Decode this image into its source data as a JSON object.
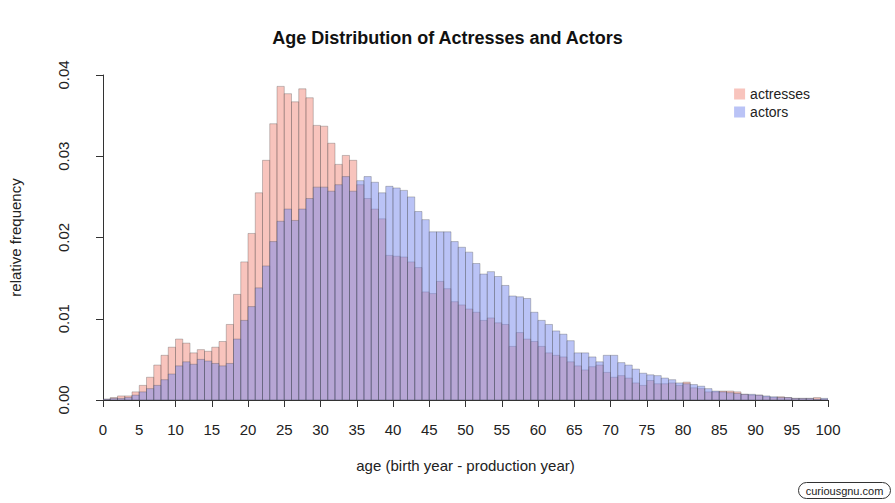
{
  "chart_data": {
    "type": "histogram",
    "title": "Age Distribution of Actresses and Actors",
    "x_label": "age (birth year - production year)",
    "y_label": "relative frequency",
    "bins": [
      0,
      1,
      2,
      3,
      4,
      5,
      6,
      7,
      8,
      9,
      10,
      11,
      12,
      13,
      14,
      15,
      16,
      17,
      18,
      19,
      20,
      21,
      22,
      23,
      24,
      25,
      26,
      27,
      28,
      29,
      30,
      31,
      32,
      33,
      34,
      35,
      36,
      37,
      38,
      39,
      40,
      41,
      42,
      43,
      44,
      45,
      46,
      47,
      48,
      49,
      50,
      51,
      52,
      53,
      54,
      55,
      56,
      57,
      58,
      59,
      60,
      61,
      62,
      63,
      64,
      65,
      66,
      67,
      68,
      69,
      70,
      71,
      72,
      73,
      74,
      75,
      76,
      77,
      78,
      79,
      80,
      81,
      82,
      83,
      84,
      85,
      86,
      87,
      88,
      89,
      90,
      91,
      92,
      93,
      94,
      95,
      96,
      97,
      98,
      99,
      100
    ],
    "series": [
      {
        "name": "actresses",
        "color": "#f28a7c",
        "values": [
          0.0001,
          0.0003,
          0.0005,
          0.0005,
          0.001,
          0.0018,
          0.0028,
          0.0043,
          0.0055,
          0.0065,
          0.0075,
          0.007,
          0.0058,
          0.0062,
          0.006,
          0.0065,
          0.0072,
          0.0093,
          0.013,
          0.017,
          0.0205,
          0.0255,
          0.0295,
          0.034,
          0.0386,
          0.0377,
          0.0367,
          0.0383,
          0.0372,
          0.0338,
          0.0337,
          0.0316,
          0.029,
          0.0301,
          0.0295,
          0.0265,
          0.0248,
          0.0235,
          0.0223,
          0.0178,
          0.0177,
          0.0176,
          0.017,
          0.0163,
          0.0133,
          0.0131,
          0.0146,
          0.0137,
          0.0121,
          0.0117,
          0.0112,
          0.0108,
          0.0098,
          0.0101,
          0.0095,
          0.0093,
          0.0066,
          0.0083,
          0.0075,
          0.0072,
          0.0066,
          0.0058,
          0.0055,
          0.0053,
          0.0047,
          0.0042,
          0.0037,
          0.0041,
          0.0043,
          0.0034,
          0.0028,
          0.003,
          0.0027,
          0.0021,
          0.0018,
          0.0024,
          0.002,
          0.002,
          0.0021,
          0.0018,
          0.0022,
          0.0015,
          0.0014,
          0.001,
          0.001,
          0.0011,
          0.0011,
          0.001,
          0.0007,
          0.0006,
          0.0006,
          0.0004,
          0.0003,
          0.0004,
          0.0003,
          0.0002,
          0.0002,
          0.0002,
          0.0003,
          0.0001
        ]
      },
      {
        "name": "actors",
        "color": "#7688ee",
        "values": [
          0.0001,
          0.0002,
          0.0002,
          0.0003,
          0.0006,
          0.001,
          0.0014,
          0.0018,
          0.0025,
          0.0032,
          0.0042,
          0.0047,
          0.0044,
          0.005,
          0.0048,
          0.0045,
          0.0042,
          0.0045,
          0.0075,
          0.0098,
          0.0115,
          0.0138,
          0.0165,
          0.0195,
          0.022,
          0.0235,
          0.0221,
          0.0235,
          0.0248,
          0.0262,
          0.0262,
          0.0257,
          0.0265,
          0.0275,
          0.0257,
          0.027,
          0.0275,
          0.0268,
          0.0255,
          0.0263,
          0.0261,
          0.0258,
          0.025,
          0.0232,
          0.0222,
          0.0207,
          0.0207,
          0.0207,
          0.0195,
          0.0188,
          0.0182,
          0.0168,
          0.0155,
          0.0158,
          0.0152,
          0.0141,
          0.0128,
          0.0127,
          0.0125,
          0.0108,
          0.0098,
          0.0093,
          0.0085,
          0.0081,
          0.0073,
          0.0058,
          0.0058,
          0.0053,
          0.0047,
          0.0055,
          0.0055,
          0.0046,
          0.0043,
          0.0038,
          0.0033,
          0.0031,
          0.003,
          0.0027,
          0.0025,
          0.0021,
          0.002,
          0.0019,
          0.0017,
          0.0014,
          0.0011,
          0.001,
          0.0009,
          0.0008,
          0.0007,
          0.0007,
          0.0006,
          0.0005,
          0.0004,
          0.0003,
          0.0003,
          0.0002,
          0.0002,
          0.0002,
          0.0001,
          0.0002
        ]
      }
    ],
    "xlim": [
      0,
      100
    ],
    "xticks": [
      0,
      5,
      10,
      15,
      20,
      25,
      30,
      35,
      40,
      45,
      50,
      55,
      60,
      65,
      70,
      75,
      80,
      85,
      90,
      95,
      100
    ],
    "ylim": [
      0,
      0.04
    ],
    "yticks": [
      {
        "value": 0,
        "label": "0.00"
      },
      {
        "value": 0.01,
        "label": "0.01"
      },
      {
        "value": 0.02,
        "label": "0.02"
      },
      {
        "value": 0.03,
        "label": "0.03"
      },
      {
        "value": 0.04,
        "label": "0.04"
      }
    ],
    "grid": false,
    "legend": "top-right",
    "annotations": [
      "curiousgnu.com"
    ]
  }
}
